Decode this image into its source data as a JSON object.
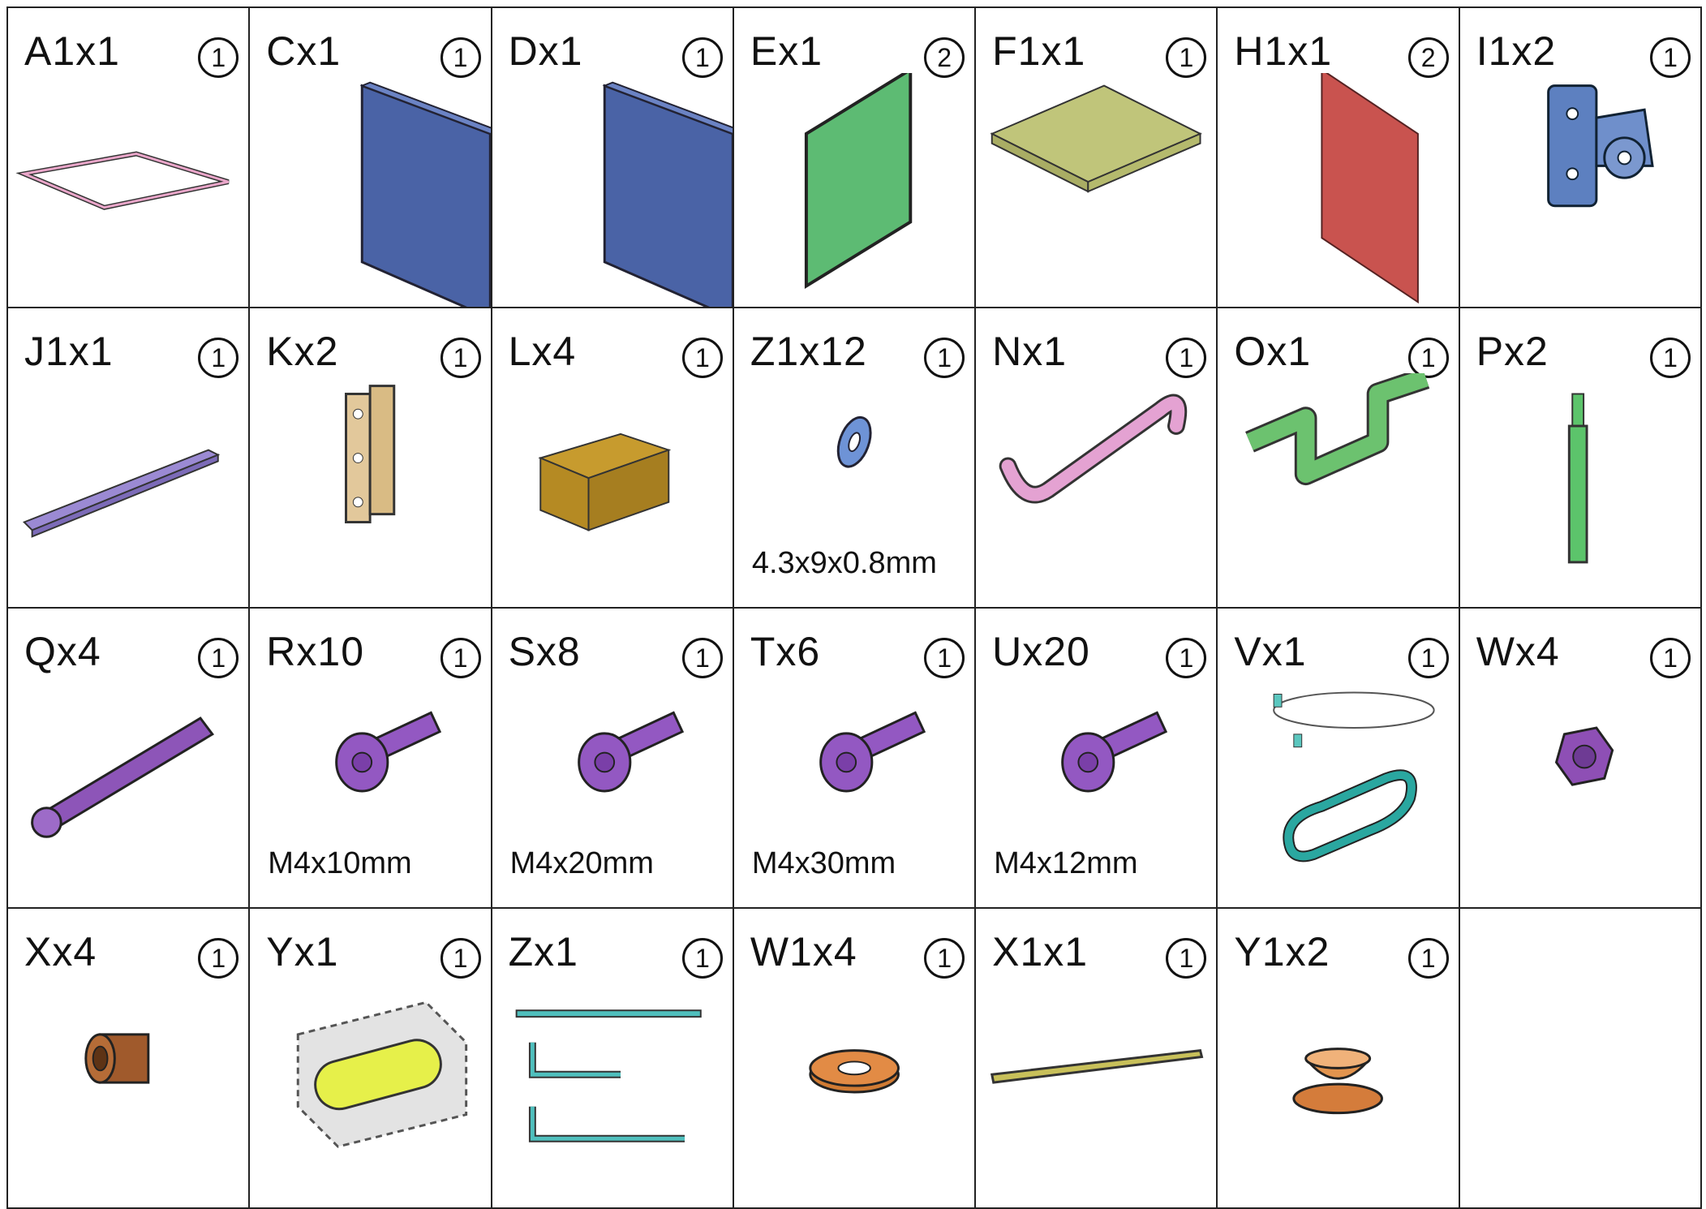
{
  "parts": [
    {
      "label": "A1x1",
      "qty": "1",
      "spec": "",
      "icon": "frame-icon",
      "color": "#e9a6c9"
    },
    {
      "label": "Cx1",
      "qty": "1",
      "spec": "",
      "icon": "blue-panel-icon",
      "color": "#4a63a6"
    },
    {
      "label": "Dx1",
      "qty": "1",
      "spec": "",
      "icon": "blue-panel-icon",
      "color": "#4a63a6"
    },
    {
      "label": "Ex1",
      "qty": "2",
      "spec": "",
      "icon": "green-panel-icon",
      "color": "#5dbb73"
    },
    {
      "label": "F1x1",
      "qty": "1",
      "spec": "",
      "icon": "shelf-board-icon",
      "color": "#c0c57a"
    },
    {
      "label": "H1x1",
      "qty": "2",
      "spec": "",
      "icon": "red-panel-icon",
      "color": "#c9534f"
    },
    {
      "label": "I1x2",
      "qty": "1",
      "spec": "",
      "icon": "hinge-bracket-icon",
      "color": "#5d80c0"
    },
    {
      "label": "J1x1",
      "qty": "1",
      "spec": "",
      "icon": "bar-icon",
      "color": "#9b8ad3"
    },
    {
      "label": "Kx2",
      "qty": "1",
      "spec": "",
      "icon": "hinge-icon",
      "color": "#e2c89b"
    },
    {
      "label": "Lx4",
      "qty": "1",
      "spec": "",
      "icon": "end-cap-icon",
      "color": "#c79b2e"
    },
    {
      "label": "Z1x12",
      "qty": "1",
      "spec": "4.3x9x0.8mm",
      "icon": "washer-icon",
      "color": "#6e93d6"
    },
    {
      "label": "Nx1",
      "qty": "1",
      "spec": "",
      "icon": "handle-icon",
      "color": "#e4a2d2"
    },
    {
      "label": "Ox1",
      "qty": "1",
      "spec": "",
      "icon": "u-bracket-icon",
      "color": "#6cc26f"
    },
    {
      "label": "Px2",
      "qty": "1",
      "spec": "",
      "icon": "pin-icon",
      "color": "#5cc46b"
    },
    {
      "label": "Qx4",
      "qty": "1",
      "spec": "",
      "icon": "wall-anchor-icon",
      "color": "#8d55b8"
    },
    {
      "label": "Rx10",
      "qty": "1",
      "spec": "M4x10mm",
      "icon": "screw-icon",
      "color": "#9358c2"
    },
    {
      "label": "Sx8",
      "qty": "1",
      "spec": "M4x20mm",
      "icon": "screw-icon",
      "color": "#9358c2"
    },
    {
      "label": "Tx6",
      "qty": "1",
      "spec": "M4x30mm",
      "icon": "screw-icon",
      "color": "#9358c2"
    },
    {
      "label": "Ux20",
      "qty": "1",
      "spec": "M4x12mm",
      "icon": "screw-icon",
      "color": "#9358c2"
    },
    {
      "label": "Vx1",
      "qty": "1",
      "spec": "",
      "icon": "cable-carabiner-icon",
      "color": "#2aa7a0"
    },
    {
      "label": "Wx4",
      "qty": "1",
      "spec": "",
      "icon": "nut-icon",
      "color": "#8e4fb5"
    },
    {
      "label": "Xx4",
      "qty": "1",
      "spec": "",
      "icon": "spacer-icon",
      "color": "#a05a2c"
    },
    {
      "label": "Yx1",
      "qty": "1",
      "spec": "",
      "icon": "level-icon",
      "color": "#e6f04a"
    },
    {
      "label": "Zx1",
      "qty": "1",
      "spec": "",
      "icon": "hex-key-icon",
      "color": "#4fbfbd"
    },
    {
      "label": "W1x4",
      "qty": "1",
      "spec": "",
      "icon": "ring-washer-icon",
      "color": "#d17b33"
    },
    {
      "label": "X1x1",
      "qty": "1",
      "spec": "",
      "icon": "strip-icon",
      "color": "#c8c05a"
    },
    {
      "label": "Y1x2",
      "qty": "1",
      "spec": "",
      "icon": "cup-foot-icon",
      "color": "#d47c3b"
    },
    {
      "label": "",
      "qty": "",
      "spec": "",
      "icon": "",
      "color": ""
    }
  ]
}
